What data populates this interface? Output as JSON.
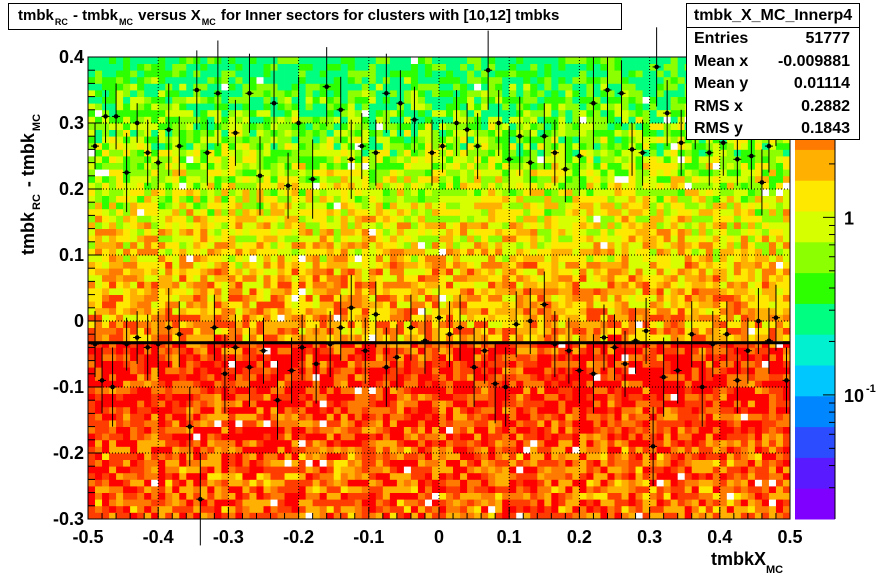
{
  "title": {
    "text": "tmbk_RC - tmbk_MC versus X_MC for Inner sectors for clusters with [10,12] tmbks",
    "parts": [
      "tmbk",
      "RC",
      " - tmbk",
      "MC",
      " versus X",
      "MC",
      " for Inner sectors for clusters with [10,12] tmbks"
    ]
  },
  "stats": {
    "name": "tmbk_X_MC_Innerp4",
    "rows": [
      {
        "label": "Entries",
        "value": "51777"
      },
      {
        "label": "Mean x",
        "value": "-0.009881"
      },
      {
        "label": "Mean y",
        "value": "0.01114"
      },
      {
        "label": "RMS x",
        "value": "0.2882"
      },
      {
        "label": "RMS y",
        "value": "0.1843"
      }
    ]
  },
  "axes": {
    "x": {
      "label": "tmbkX",
      "label_sub": "MC",
      "min": -0.5,
      "max": 0.5,
      "ticks": [
        {
          "v": -0.5,
          "t": "-0.5"
        },
        {
          "v": -0.4,
          "t": "-0.4"
        },
        {
          "v": -0.3,
          "t": "-0.3"
        },
        {
          "v": -0.2,
          "t": "-0.2"
        },
        {
          "v": -0.1,
          "t": "-0.1"
        },
        {
          "v": 0,
          "t": "0"
        },
        {
          "v": 0.1,
          "t": "0.1"
        },
        {
          "v": 0.2,
          "t": "0.2"
        },
        {
          "v": 0.3,
          "t": "0.3"
        },
        {
          "v": 0.4,
          "t": "0.4"
        },
        {
          "v": 0.5,
          "t": "0.5"
        }
      ]
    },
    "y": {
      "label": "tmbk",
      "label_sub1": "RC",
      "label_mid": " - tmbk",
      "label_sub2": "MC",
      "min": -0.3,
      "max": 0.4,
      "ticks": [
        {
          "v": -0.3,
          "t": "-0.3"
        },
        {
          "v": -0.2,
          "t": "-0.2"
        },
        {
          "v": -0.1,
          "t": "-0.1"
        },
        {
          "v": 0,
          "t": "0"
        },
        {
          "v": 0.1,
          "t": "0.1"
        },
        {
          "v": 0.2,
          "t": "0.2"
        },
        {
          "v": 0.3,
          "t": "0.3"
        },
        {
          "v": 0.4,
          "t": "0.4"
        }
      ]
    },
    "z": {
      "scale": "log",
      "ticks": [
        {
          "v": 1,
          "t": "1"
        },
        {
          "v": 0.1,
          "t": "10",
          "sup": "-1"
        }
      ]
    }
  },
  "colors": {
    "palette": [
      "#7f00ff",
      "#5a1aff",
      "#2b4cff",
      "#0086ff",
      "#00c8ff",
      "#00f0d0",
      "#00ff80",
      "#2dff00",
      "#8cff00",
      "#d6ff00",
      "#ffe800",
      "#ffb000",
      "#ff7a00",
      "#ff3d00",
      "#ff0000"
    ],
    "profile_line": "#000000",
    "fit_line": "#000000"
  },
  "chart_data": {
    "type": "heatmap",
    "grid": true,
    "x_bins": 100,
    "y_bins": 70,
    "fit_line_y": -0.033,
    "profile_upper": [
      {
        "x": -0.49,
        "y": 0.265,
        "e": 0.035
      },
      {
        "x": -0.475,
        "y": 0.31,
        "e": 0.04
      },
      {
        "x": -0.46,
        "y": 0.31,
        "e": 0.05
      },
      {
        "x": -0.445,
        "y": 0.225,
        "e": 0.06
      },
      {
        "x": -0.43,
        "y": 0.3,
        "e": 0.03
      },
      {
        "x": -0.415,
        "y": 0.255,
        "e": 0.05
      },
      {
        "x": -0.4,
        "y": 0.24,
        "e": 0.04
      },
      {
        "x": -0.385,
        "y": 0.29,
        "e": 0.07
      },
      {
        "x": -0.37,
        "y": 0.265,
        "e": 0.045
      },
      {
        "x": -0.345,
        "y": 0.35,
        "e": 0.06
      },
      {
        "x": -0.33,
        "y": 0.255,
        "e": 0.05
      },
      {
        "x": -0.315,
        "y": 0.345,
        "e": 0.08
      },
      {
        "x": -0.29,
        "y": 0.285,
        "e": 0.05
      },
      {
        "x": -0.27,
        "y": 0.345,
        "e": 0.06
      },
      {
        "x": -0.255,
        "y": 0.22,
        "e": 0.06
      },
      {
        "x": -0.235,
        "y": 0.33,
        "e": 0.07
      },
      {
        "x": -0.215,
        "y": 0.205,
        "e": 0.05
      },
      {
        "x": -0.2,
        "y": 0.3,
        "e": 0.07
      },
      {
        "x": -0.18,
        "y": 0.215,
        "e": 0.06
      },
      {
        "x": -0.16,
        "y": 0.355,
        "e": 0.06
      },
      {
        "x": -0.14,
        "y": 0.32,
        "e": 0.05
      },
      {
        "x": -0.125,
        "y": 0.245,
        "e": 0.06
      },
      {
        "x": -0.11,
        "y": 0.265,
        "e": 0.05
      },
      {
        "x": -0.09,
        "y": 0.255,
        "e": 0.05
      },
      {
        "x": -0.075,
        "y": 0.345,
        "e": 0.06
      },
      {
        "x": -0.055,
        "y": 0.33,
        "e": 0.05
      },
      {
        "x": -0.035,
        "y": 0.305,
        "e": 0.05
      },
      {
        "x": -0.01,
        "y": 0.255,
        "e": 0.05
      },
      {
        "x": 0.005,
        "y": 0.265,
        "e": 0.04
      },
      {
        "x": 0.025,
        "y": 0.3,
        "e": 0.05
      },
      {
        "x": 0.04,
        "y": 0.29,
        "e": 0.04
      },
      {
        "x": 0.055,
        "y": 0.265,
        "e": 0.05
      },
      {
        "x": 0.07,
        "y": 0.38,
        "e": 0.06
      },
      {
        "x": 0.085,
        "y": 0.3,
        "e": 0.05
      },
      {
        "x": 0.1,
        "y": 0.245,
        "e": 0.05
      },
      {
        "x": 0.115,
        "y": 0.28,
        "e": 0.06
      },
      {
        "x": 0.13,
        "y": 0.24,
        "e": 0.05
      },
      {
        "x": 0.15,
        "y": 0.28,
        "e": 0.05
      },
      {
        "x": 0.165,
        "y": 0.255,
        "e": 0.05
      },
      {
        "x": 0.18,
        "y": 0.23,
        "e": 0.05
      },
      {
        "x": 0.2,
        "y": 0.25,
        "e": 0.06
      },
      {
        "x": 0.22,
        "y": 0.33,
        "e": 0.07
      },
      {
        "x": 0.24,
        "y": 0.35,
        "e": 0.05
      },
      {
        "x": 0.26,
        "y": 0.345,
        "e": 0.05
      },
      {
        "x": 0.275,
        "y": 0.26,
        "e": 0.04
      },
      {
        "x": 0.29,
        "y": 0.255,
        "e": 0.05
      },
      {
        "x": 0.31,
        "y": 0.385,
        "e": 0.06
      },
      {
        "x": 0.325,
        "y": 0.315,
        "e": 0.05
      },
      {
        "x": 0.345,
        "y": 0.27,
        "e": 0.05
      },
      {
        "x": 0.365,
        "y": 0.31,
        "e": 0.05
      },
      {
        "x": 0.385,
        "y": 0.255,
        "e": 0.05
      },
      {
        "x": 0.405,
        "y": 0.27,
        "e": 0.05
      },
      {
        "x": 0.425,
        "y": 0.245,
        "e": 0.04
      },
      {
        "x": 0.445,
        "y": 0.25,
        "e": 0.05
      },
      {
        "x": 0.46,
        "y": 0.21,
        "e": 0.05
      },
      {
        "x": 0.47,
        "y": 0.265,
        "e": 0.04
      },
      {
        "x": 0.48,
        "y": 0.315,
        "e": 0.05
      }
    ],
    "profile_lower": [
      {
        "x": -0.49,
        "y": -0.035,
        "e": 0.05
      },
      {
        "x": -0.48,
        "y": -0.09,
        "e": 0.05
      },
      {
        "x": -0.465,
        "y": -0.1,
        "e": 0.06
      },
      {
        "x": -0.445,
        "y": -0.035,
        "e": 0.04
      },
      {
        "x": -0.43,
        "y": -0.025,
        "e": 0.04
      },
      {
        "x": -0.415,
        "y": -0.04,
        "e": 0.05
      },
      {
        "x": -0.4,
        "y": -0.035,
        "e": 0.05
      },
      {
        "x": -0.385,
        "y": -0.01,
        "e": 0.06
      },
      {
        "x": -0.37,
        "y": -0.02,
        "e": 0.05
      },
      {
        "x": -0.355,
        "y": -0.16,
        "e": 0.06
      },
      {
        "x": -0.34,
        "y": -0.27,
        "e": 0.07
      },
      {
        "x": -0.32,
        "y": -0.01,
        "e": 0.05
      },
      {
        "x": -0.305,
        "y": -0.08,
        "e": 0.06
      },
      {
        "x": -0.29,
        "y": -0.04,
        "e": 0.05
      },
      {
        "x": -0.27,
        "y": -0.07,
        "e": 0.06
      },
      {
        "x": -0.25,
        "y": -0.045,
        "e": 0.05
      },
      {
        "x": -0.23,
        "y": -0.12,
        "e": 0.06
      },
      {
        "x": -0.21,
        "y": -0.075,
        "e": 0.05
      },
      {
        "x": -0.195,
        "y": -0.04,
        "e": 0.05
      },
      {
        "x": -0.175,
        "y": -0.065,
        "e": 0.06
      },
      {
        "x": -0.155,
        "y": -0.035,
        "e": 0.05
      },
      {
        "x": -0.14,
        "y": -0.01,
        "e": 0.05
      },
      {
        "x": -0.125,
        "y": 0.02,
        "e": 0.05
      },
      {
        "x": -0.105,
        "y": -0.045,
        "e": 0.05
      },
      {
        "x": -0.09,
        "y": 0.01,
        "e": 0.05
      },
      {
        "x": -0.075,
        "y": -0.07,
        "e": 0.06
      },
      {
        "x": -0.06,
        "y": -0.055,
        "e": 0.05
      },
      {
        "x": -0.04,
        "y": -0.01,
        "e": 0.05
      },
      {
        "x": -0.02,
        "y": -0.03,
        "e": 0.05
      },
      {
        "x": 0.0,
        "y": 0.005,
        "e": 0.05
      },
      {
        "x": 0.015,
        "y": -0.02,
        "e": 0.05
      },
      {
        "x": 0.03,
        "y": -0.01,
        "e": 0.05
      },
      {
        "x": 0.05,
        "y": -0.07,
        "e": 0.06
      },
      {
        "x": 0.065,
        "y": -0.045,
        "e": 0.05
      },
      {
        "x": 0.08,
        "y": -0.095,
        "e": 0.06
      },
      {
        "x": 0.095,
        "y": -0.1,
        "e": 0.06
      },
      {
        "x": 0.11,
        "y": -0.005,
        "e": 0.05
      },
      {
        "x": 0.13,
        "y": 0.0,
        "e": 0.05
      },
      {
        "x": 0.15,
        "y": 0.025,
        "e": 0.05
      },
      {
        "x": 0.165,
        "y": -0.035,
        "e": 0.05
      },
      {
        "x": 0.185,
        "y": -0.045,
        "e": 0.05
      },
      {
        "x": 0.2,
        "y": -0.075,
        "e": 0.05
      },
      {
        "x": 0.22,
        "y": -0.08,
        "e": 0.06
      },
      {
        "x": 0.235,
        "y": -0.025,
        "e": 0.05
      },
      {
        "x": 0.25,
        "y": -0.04,
        "e": 0.05
      },
      {
        "x": 0.265,
        "y": -0.065,
        "e": 0.05
      },
      {
        "x": 0.28,
        "y": -0.03,
        "e": 0.05
      },
      {
        "x": 0.295,
        "y": -0.015,
        "e": 0.05
      },
      {
        "x": 0.305,
        "y": -0.19,
        "e": 0.06
      },
      {
        "x": 0.32,
        "y": -0.085,
        "e": 0.06
      },
      {
        "x": 0.34,
        "y": -0.075,
        "e": 0.05
      },
      {
        "x": 0.36,
        "y": -0.02,
        "e": 0.05
      },
      {
        "x": 0.375,
        "y": -0.1,
        "e": 0.06
      },
      {
        "x": 0.39,
        "y": -0.035,
        "e": 0.05
      },
      {
        "x": 0.41,
        "y": -0.02,
        "e": 0.05
      },
      {
        "x": 0.425,
        "y": -0.09,
        "e": 0.05
      },
      {
        "x": 0.44,
        "y": -0.045,
        "e": 0.05
      },
      {
        "x": 0.455,
        "y": 0.0,
        "e": 0.05
      },
      {
        "x": 0.47,
        "y": -0.03,
        "e": 0.05
      },
      {
        "x": 0.48,
        "y": 0.005,
        "e": 0.05
      },
      {
        "x": 0.495,
        "y": -0.09,
        "e": 0.05
      }
    ]
  }
}
